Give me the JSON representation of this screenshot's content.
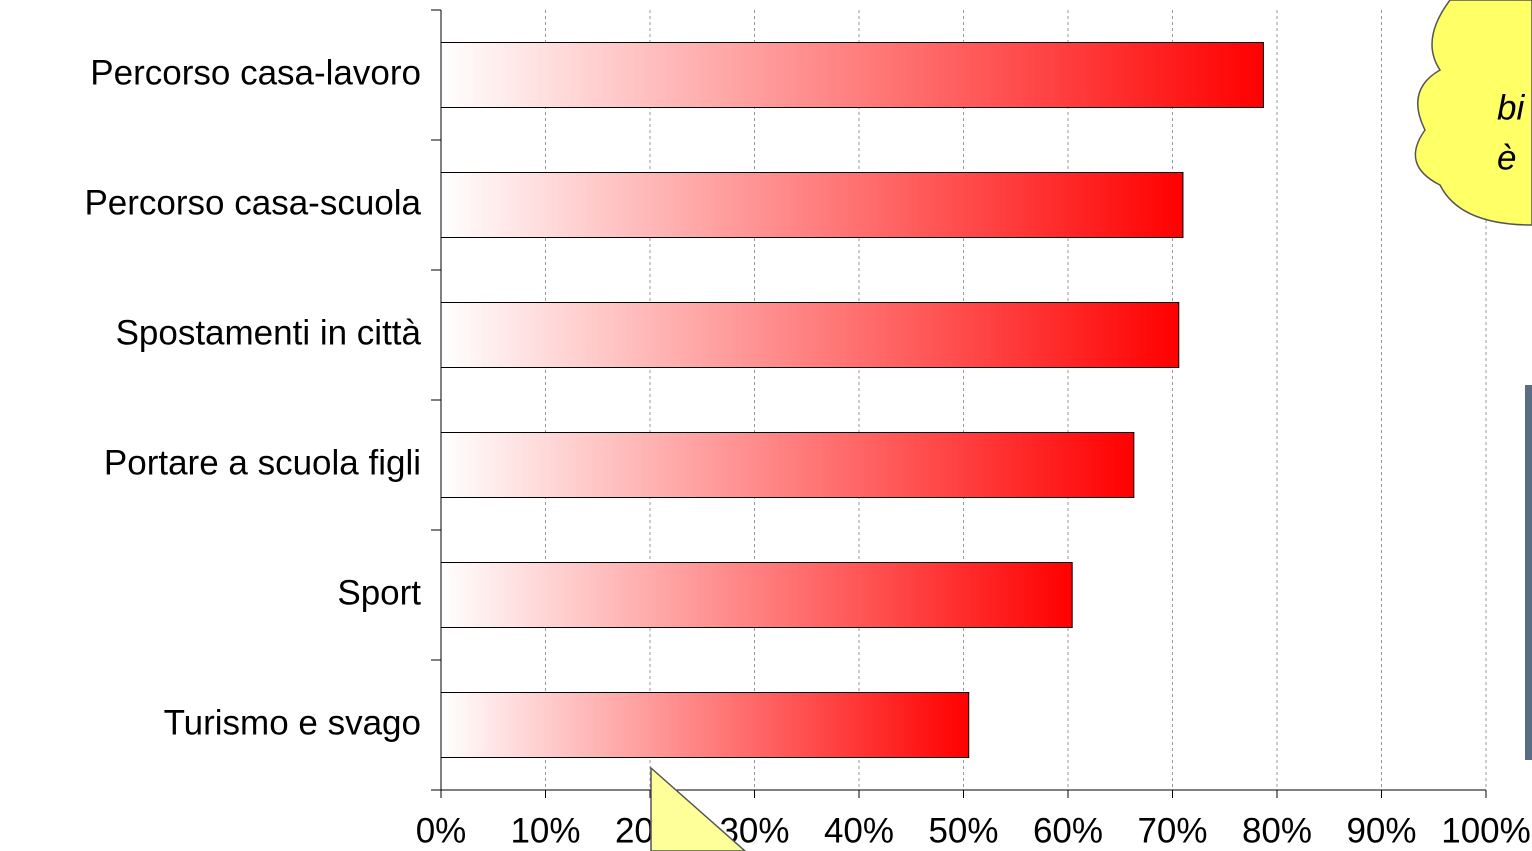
{
  "chart_data": {
    "type": "bar",
    "categories": [
      "Percorso casa-lavoro",
      "Percorso casa-scuola",
      "Spostamenti in città",
      "Portare a scuola figli",
      "Sport",
      "Turismo e svago"
    ],
    "values": [
      78.7,
      71.0,
      70.6,
      66.3,
      60.4,
      50.5
    ],
    "color": "#ff0000",
    "xlim": [
      0,
      100
    ],
    "xticks": [
      {
        "value": 0,
        "label": "0%"
      },
      {
        "value": 10,
        "label": "10%"
      },
      {
        "value": 20,
        "label": "20%"
      },
      {
        "value": 30,
        "label": "30%"
      },
      {
        "value": 40,
        "label": "40%"
      },
      {
        "value": 50,
        "label": "50%"
      },
      {
        "value": 60,
        "label": "60%"
      },
      {
        "value": 70,
        "label": "70%"
      },
      {
        "value": 80,
        "label": "80%"
      },
      {
        "value": 90,
        "label": "90%"
      },
      {
        "value": 100,
        "label": "100%"
      }
    ],
    "grid": true,
    "annotations": [
      "bi",
      "è"
    ]
  }
}
